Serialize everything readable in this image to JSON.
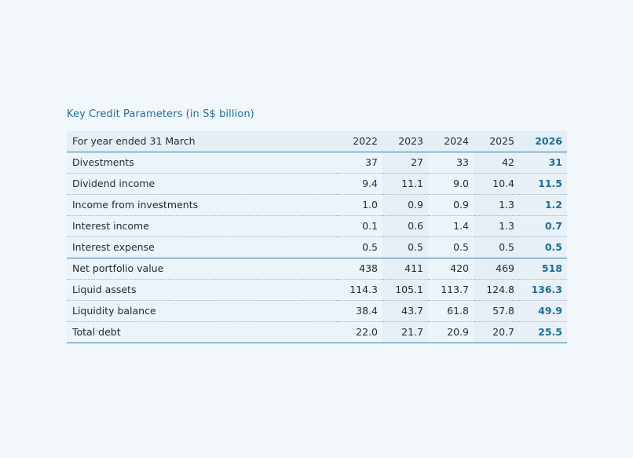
{
  "title": "Key Credit Parameters (in S$ billion)",
  "header": {
    "label": "For year ended 31 March",
    "years": [
      "2022",
      "2023",
      "2024",
      "2025",
      "2026"
    ]
  },
  "rows": [
    {
      "label": "Divestments",
      "values": [
        "37",
        "27",
        "33",
        "42",
        "31"
      ]
    },
    {
      "label": "Dividend income",
      "values": [
        "9.4",
        "11.1",
        "9.0",
        "10.4",
        "11.5"
      ]
    },
    {
      "label": "Income from investments",
      "values": [
        "1.0",
        "0.9",
        "0.9",
        "1.3",
        "1.2"
      ]
    },
    {
      "label": "Interest income",
      "values": [
        "0.1",
        "0.6",
        "1.4",
        "1.3",
        "0.7"
      ]
    },
    {
      "label": "Interest expense",
      "values": [
        "0.5",
        "0.5",
        "0.5",
        "0.5",
        "0.5"
      ]
    },
    {
      "label": "Net portfolio value",
      "values": [
        "438",
        "411",
        "420",
        "469",
        "518"
      ]
    },
    {
      "label": "Liquid assets",
      "values": [
        "114.3",
        "105.1",
        "113.7",
        "124.8",
        "136.3"
      ]
    },
    {
      "label": "Liquidity balance",
      "values": [
        "38.4",
        "43.7",
        "61.8",
        "57.8",
        "49.9"
      ]
    },
    {
      "label": "Total debt",
      "values": [
        "22.0",
        "21.7",
        "20.9",
        "20.7",
        "25.5"
      ]
    }
  ],
  "colors": {
    "accent": "#1d6f96",
    "rule": "#2f7fa6",
    "background": "#f2f7fb"
  }
}
